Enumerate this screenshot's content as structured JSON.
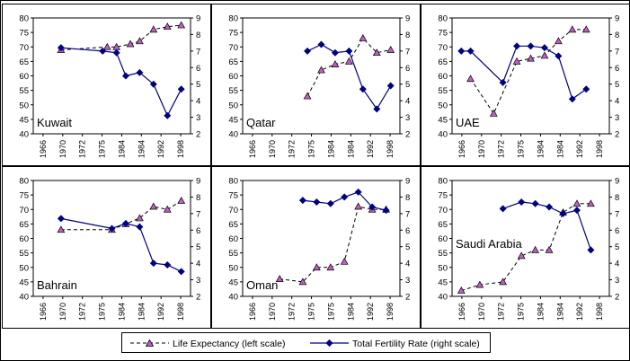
{
  "legend": {
    "life_expectancy": "Life Expectancy (left scale)",
    "fertility": "Total Fertility Rate (right scale)"
  },
  "colors": {
    "life_expectancy_line": "#000000",
    "life_expectancy_marker": "#c060c0",
    "fertility": "#000080",
    "frame": "#000000"
  },
  "chart_data": [
    {
      "type": "line",
      "title": "Kuwait",
      "x_ticks": [
        "1966",
        "1970",
        "1972",
        "1975",
        "1984",
        "1984",
        "1992",
        "1998"
      ],
      "ylim_left": [
        40,
        80
      ],
      "ylim_right": [
        2,
        9
      ],
      "left_ticks": [
        "40",
        "45",
        "50",
        "55",
        "60",
        "65",
        "70",
        "75",
        "80"
      ],
      "right_ticks": [
        "2",
        "3",
        "4",
        "5",
        "6",
        "7",
        "8",
        "9"
      ],
      "series": [
        {
          "name": "Life Expectancy (left scale)",
          "axis": "left",
          "style": "dashed",
          "marker": "triangle",
          "points": [
            [
              1970,
              69
            ],
            [
              1980,
              70
            ],
            [
              1982,
              70
            ],
            [
              1985,
              71
            ],
            [
              1987,
              72
            ],
            [
              1990,
              76
            ],
            [
              1993,
              77
            ],
            [
              1996,
              77.5
            ]
          ]
        },
        {
          "name": "Total Fertility Rate (right scale)",
          "axis": "right",
          "style": "solid",
          "marker": "diamond",
          "points": [
            [
              1970,
              7.2
            ],
            [
              1979,
              7.0
            ],
            [
              1982,
              6.9
            ],
            [
              1984,
              5.5
            ],
            [
              1987,
              5.7
            ],
            [
              1990,
              5.0
            ],
            [
              1993,
              3.1
            ],
            [
              1996,
              4.7
            ]
          ]
        }
      ]
    },
    {
      "type": "line",
      "title": "Qatar",
      "x_ticks": [
        "1966",
        "1970",
        "1972",
        "1975",
        "1984",
        "1984",
        "1992",
        "1998"
      ],
      "ylim_left": [
        40,
        80
      ],
      "ylim_right": [
        2,
        9
      ],
      "left_ticks": [
        "40",
        "45",
        "50",
        "55",
        "60",
        "65",
        "70",
        "75",
        "80"
      ],
      "right_ticks": [
        "2",
        "3",
        "4",
        "5",
        "6",
        "7",
        "8",
        "9"
      ],
      "series": [
        {
          "name": "Life Expectancy (left scale)",
          "axis": "left",
          "style": "dashed",
          "marker": "triangle",
          "points": [
            [
              1978,
              53
            ],
            [
              1981,
              62
            ],
            [
              1984,
              64
            ],
            [
              1987,
              65
            ],
            [
              1990,
              73
            ],
            [
              1993,
              68
            ],
            [
              1996,
              69
            ]
          ]
        },
        {
          "name": "Total Fertility Rate (right scale)",
          "axis": "right",
          "style": "solid",
          "marker": "diamond",
          "points": [
            [
              1978,
              7.0
            ],
            [
              1981,
              7.4
            ],
            [
              1984,
              6.9
            ],
            [
              1987,
              7.0
            ],
            [
              1990,
              4.7
            ],
            [
              1993,
              3.5
            ],
            [
              1996,
              4.9
            ]
          ]
        }
      ]
    },
    {
      "type": "line",
      "title": "UAE",
      "x_ticks": [
        "1966",
        "1970",
        "1972",
        "1975",
        "1984",
        "1984",
        "1992",
        "1998"
      ],
      "ylim_left": [
        40,
        80
      ],
      "ylim_right": [
        2,
        9
      ],
      "left_ticks": [
        "40",
        "45",
        "50",
        "55",
        "60",
        "65",
        "70",
        "75",
        "80"
      ],
      "right_ticks": [
        "2",
        "3",
        "4",
        "5",
        "6",
        "7",
        "8",
        "9"
      ],
      "series": [
        {
          "name": "Life Expectancy (left scale)",
          "axis": "left",
          "style": "dashed",
          "marker": "triangle",
          "points": [
            [
              1968,
              59
            ],
            [
              1973,
              47
            ],
            [
              1978,
              65
            ],
            [
              1981,
              66
            ],
            [
              1984,
              67
            ],
            [
              1987,
              72
            ],
            [
              1990,
              76
            ],
            [
              1993,
              76
            ]
          ]
        },
        {
          "name": "Total Fertility Rate (right scale)",
          "axis": "right",
          "style": "solid",
          "marker": "diamond",
          "points": [
            [
              1966,
              7.0
            ],
            [
              1968,
              7.0
            ],
            [
              1975,
              5.1
            ],
            [
              1978,
              7.3
            ],
            [
              1981,
              7.3
            ],
            [
              1984,
              7.2
            ],
            [
              1987,
              6.7
            ],
            [
              1990,
              4.1
            ],
            [
              1993,
              4.7
            ]
          ]
        }
      ]
    },
    {
      "type": "line",
      "title": "Bahrain",
      "x_ticks": [
        "1966",
        "1970",
        "1972",
        "1975",
        "1984",
        "1984",
        "1992",
        "1998"
      ],
      "ylim_left": [
        40,
        80
      ],
      "ylim_right": [
        2,
        9
      ],
      "left_ticks": [
        "40",
        "45",
        "50",
        "55",
        "60",
        "65",
        "70",
        "75",
        "80"
      ],
      "right_ticks": [
        "2",
        "3",
        "4",
        "5",
        "6",
        "7",
        "8",
        "9"
      ],
      "series": [
        {
          "name": "Life Expectancy (left scale)",
          "axis": "left",
          "style": "dashed",
          "marker": "triangle",
          "points": [
            [
              1970,
              63
            ],
            [
              1981,
              63
            ],
            [
              1984,
              65
            ],
            [
              1987,
              67
            ],
            [
              1990,
              71
            ],
            [
              1993,
              70
            ],
            [
              1996,
              73
            ]
          ]
        },
        {
          "name": "Total Fertility Rate (right scale)",
          "axis": "right",
          "style": "solid",
          "marker": "diamond",
          "points": [
            [
              1970,
              6.7
            ],
            [
              1981,
              6.1
            ],
            [
              1984,
              6.4
            ],
            [
              1987,
              6.2
            ],
            [
              1990,
              4.0
            ],
            [
              1993,
              3.9
            ],
            [
              1996,
              3.5
            ]
          ]
        }
      ]
    },
    {
      "type": "line",
      "title": "Oman",
      "x_ticks": [
        "1966",
        "1970",
        "1972",
        "1975",
        "1975",
        "1984",
        "1992",
        "1998"
      ],
      "ylim_left": [
        40,
        80
      ],
      "ylim_right": [
        2,
        9
      ],
      "left_ticks": [
        "40",
        "45",
        "50",
        "55",
        "60",
        "65",
        "70",
        "75",
        "80"
      ],
      "right_ticks": [
        "2",
        "3",
        "4",
        "5",
        "6",
        "7",
        "8",
        "9"
      ],
      "series": [
        {
          "name": "Life Expectancy (left scale)",
          "axis": "left",
          "style": "dashed",
          "marker": "triangle",
          "points": [
            [
              1972,
              46
            ],
            [
              1977,
              45
            ],
            [
              1980,
              50
            ],
            [
              1983,
              50
            ],
            [
              1986,
              52
            ],
            [
              1989,
              71
            ],
            [
              1992,
              70
            ],
            [
              1995,
              70
            ]
          ]
        },
        {
          "name": "Total Fertility Rate (right scale)",
          "axis": "right",
          "style": "solid",
          "marker": "diamond",
          "points": [
            [
              1977,
              7.8
            ],
            [
              1980,
              7.7
            ],
            [
              1983,
              7.6
            ],
            [
              1986,
              8.0
            ],
            [
              1989,
              8.3
            ],
            [
              1992,
              7.4
            ],
            [
              1995,
              7.2
            ]
          ]
        }
      ]
    },
    {
      "type": "line",
      "title": "Saudi Arabia",
      "x_ticks": [
        "1966",
        "1970",
        "1972",
        "1975",
        "1984",
        "1984",
        "1992",
        "1998"
      ],
      "ylim_left": [
        40,
        80
      ],
      "ylim_right": [
        2,
        9
      ],
      "left_ticks": [
        "40",
        "45",
        "50",
        "55",
        "60",
        "65",
        "70",
        "75",
        "80"
      ],
      "right_ticks": [
        "2",
        "3",
        "4",
        "5",
        "6",
        "7",
        "8",
        "9"
      ],
      "series": [
        {
          "name": "Life Expectancy (left scale)",
          "axis": "left",
          "style": "dashed",
          "marker": "triangle",
          "points": [
            [
              1966,
              42
            ],
            [
              1970,
              44
            ],
            [
              1975,
              45
            ],
            [
              1979,
              54
            ],
            [
              1982,
              56
            ],
            [
              1985,
              56
            ],
            [
              1988,
              69
            ],
            [
              1991,
              72
            ],
            [
              1994,
              72
            ]
          ]
        },
        {
          "name": "Total Fertility Rate (right scale)",
          "axis": "right",
          "style": "solid",
          "marker": "diamond",
          "points": [
            [
              1975,
              7.3
            ],
            [
              1979,
              7.7
            ],
            [
              1982,
              7.6
            ],
            [
              1985,
              7.4
            ],
            [
              1988,
              7.0
            ],
            [
              1991,
              7.2
            ],
            [
              1994,
              4.8
            ]
          ]
        }
      ]
    }
  ]
}
